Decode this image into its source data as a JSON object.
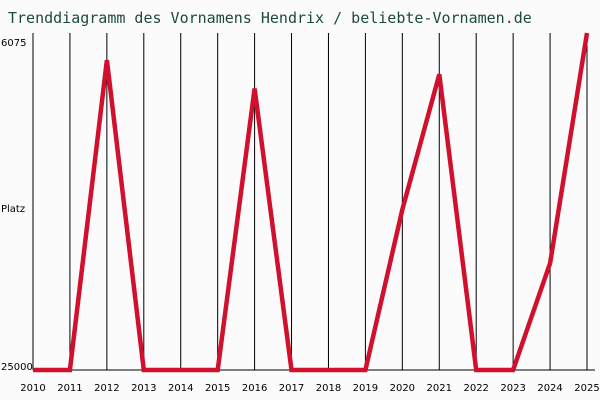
{
  "chart_data": {
    "type": "line",
    "title": "Trenddiagramm des Vornamens Hendrix / beliebte-Vornamen.de",
    "ylabel": "Platz",
    "y_ticks": [
      "6075",
      "25000"
    ],
    "yscale": "rank-inverted",
    "ylim": [
      25000,
      6075
    ],
    "grid": true,
    "x": [
      "2010",
      "2011",
      "2012",
      "2013",
      "2014",
      "2015",
      "2016",
      "2017",
      "2018",
      "2019",
      "2020",
      "2021",
      "2022",
      "2023",
      "2024",
      "2025"
    ],
    "series": [
      {
        "color": "#d0102d",
        "values": [
          25000,
          25000,
          7600,
          25000,
          25000,
          25000,
          9200,
          25000,
          25000,
          25000,
          16000,
          8400,
          25000,
          25000,
          19000,
          6075
        ]
      }
    ]
  }
}
